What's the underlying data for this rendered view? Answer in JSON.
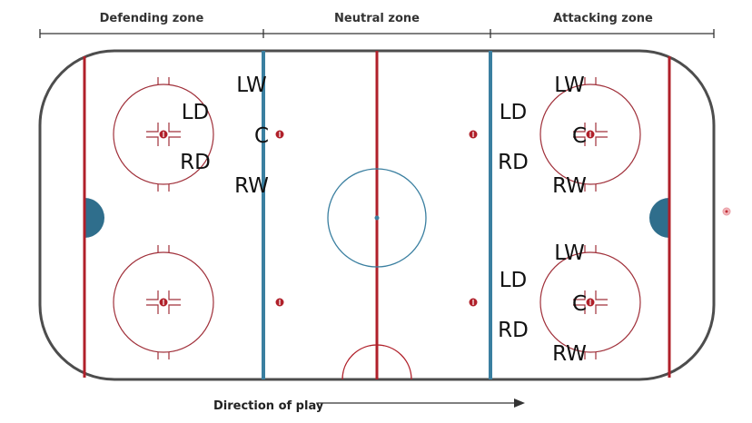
{
  "zones": [
    {
      "label": "Defending zone"
    },
    {
      "label": "Neutral zone"
    },
    {
      "label": "Attacking zone"
    }
  ],
  "direction_label": "Direction of play",
  "positions": {
    "defending": [
      "LW",
      "LD",
      "C",
      "RD",
      "RW"
    ],
    "attacking_top": [
      "LW",
      "LD",
      "C",
      "RD",
      "RW"
    ],
    "attacking_bottom": [
      "LW",
      "LD",
      "C",
      "RD",
      "RW"
    ]
  },
  "colors": {
    "boards": "#4d4d4d",
    "red_line": "#b0202a",
    "blue_line": "#3a7fa0",
    "crease_fill": "#2f6e8c",
    "faceoff": "#a0303a"
  }
}
